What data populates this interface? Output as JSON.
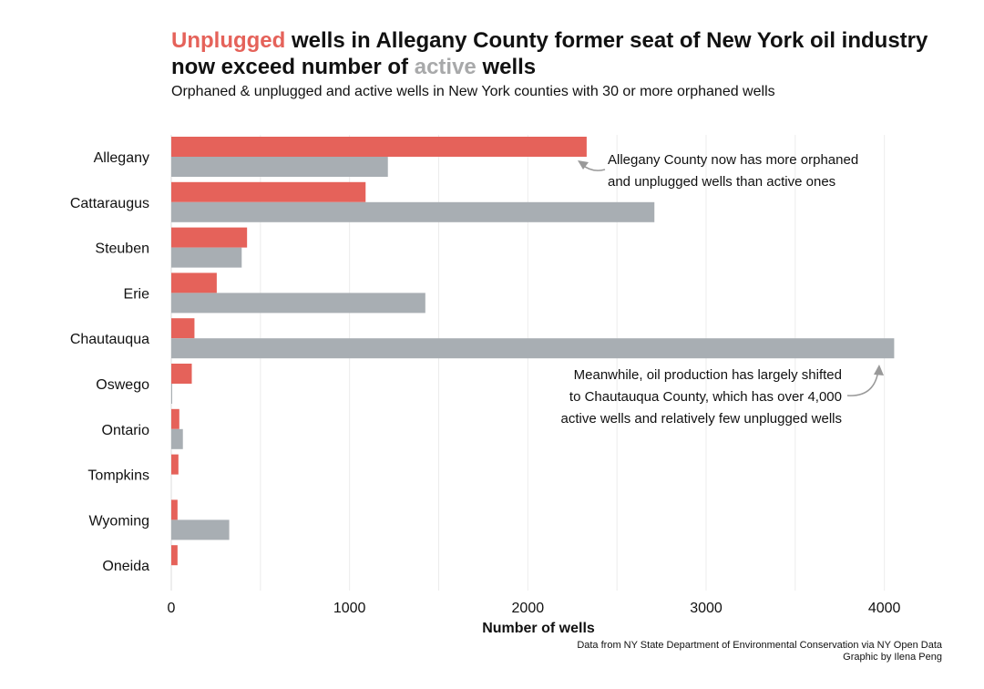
{
  "header": {
    "title_red": "Unplugged",
    "title_mid": " wells in Allegany County former seat of New York oil industry now exceed number of ",
    "title_grey": "active",
    "title_end": " wells",
    "subtitle": "Orphaned & unplugged and active wells in New York counties with 30 or more orphaned wells"
  },
  "chart_data": {
    "type": "bar",
    "orientation": "horizontal",
    "categories": [
      "Allegany",
      "Cattaraugus",
      "Steuben",
      "Erie",
      "Chautauqua",
      "Oswego",
      "Ontario",
      "Tompkins",
      "Wyoming",
      "Oneida"
    ],
    "series": [
      {
        "name": "Unplugged",
        "color": "#e5625a",
        "values": [
          2330,
          1090,
          425,
          255,
          130,
          115,
          45,
          40,
          35,
          35
        ]
      },
      {
        "name": "active",
        "color": "#a8aeb3",
        "values": [
          1215,
          2710,
          395,
          1425,
          4055,
          5,
          65,
          0,
          325,
          0
        ]
      }
    ],
    "xlabel": "Number of wells",
    "xlim": [
      0,
      4150
    ],
    "xticks": [
      0,
      1000,
      2000,
      3000,
      4000
    ],
    "xtick_labels": [
      "0",
      "1000",
      "2000",
      "3000",
      "4000"
    ],
    "grid": "vertical",
    "annotations": [
      {
        "lines": [
          "Allegany County now has more orphaned",
          "and unplugged wells than active ones"
        ]
      },
      {
        "lines": [
          "Meanwhile, oil production has largely shifted",
          "to Chautauqua County, which has over 4,000",
          "active wells and relatively few unplugged wells"
        ]
      }
    ]
  },
  "footer": {
    "source": "Data from NY State Department of Environmental Conservation via NY Open Data",
    "credit": "Graphic by Ilena Peng"
  }
}
